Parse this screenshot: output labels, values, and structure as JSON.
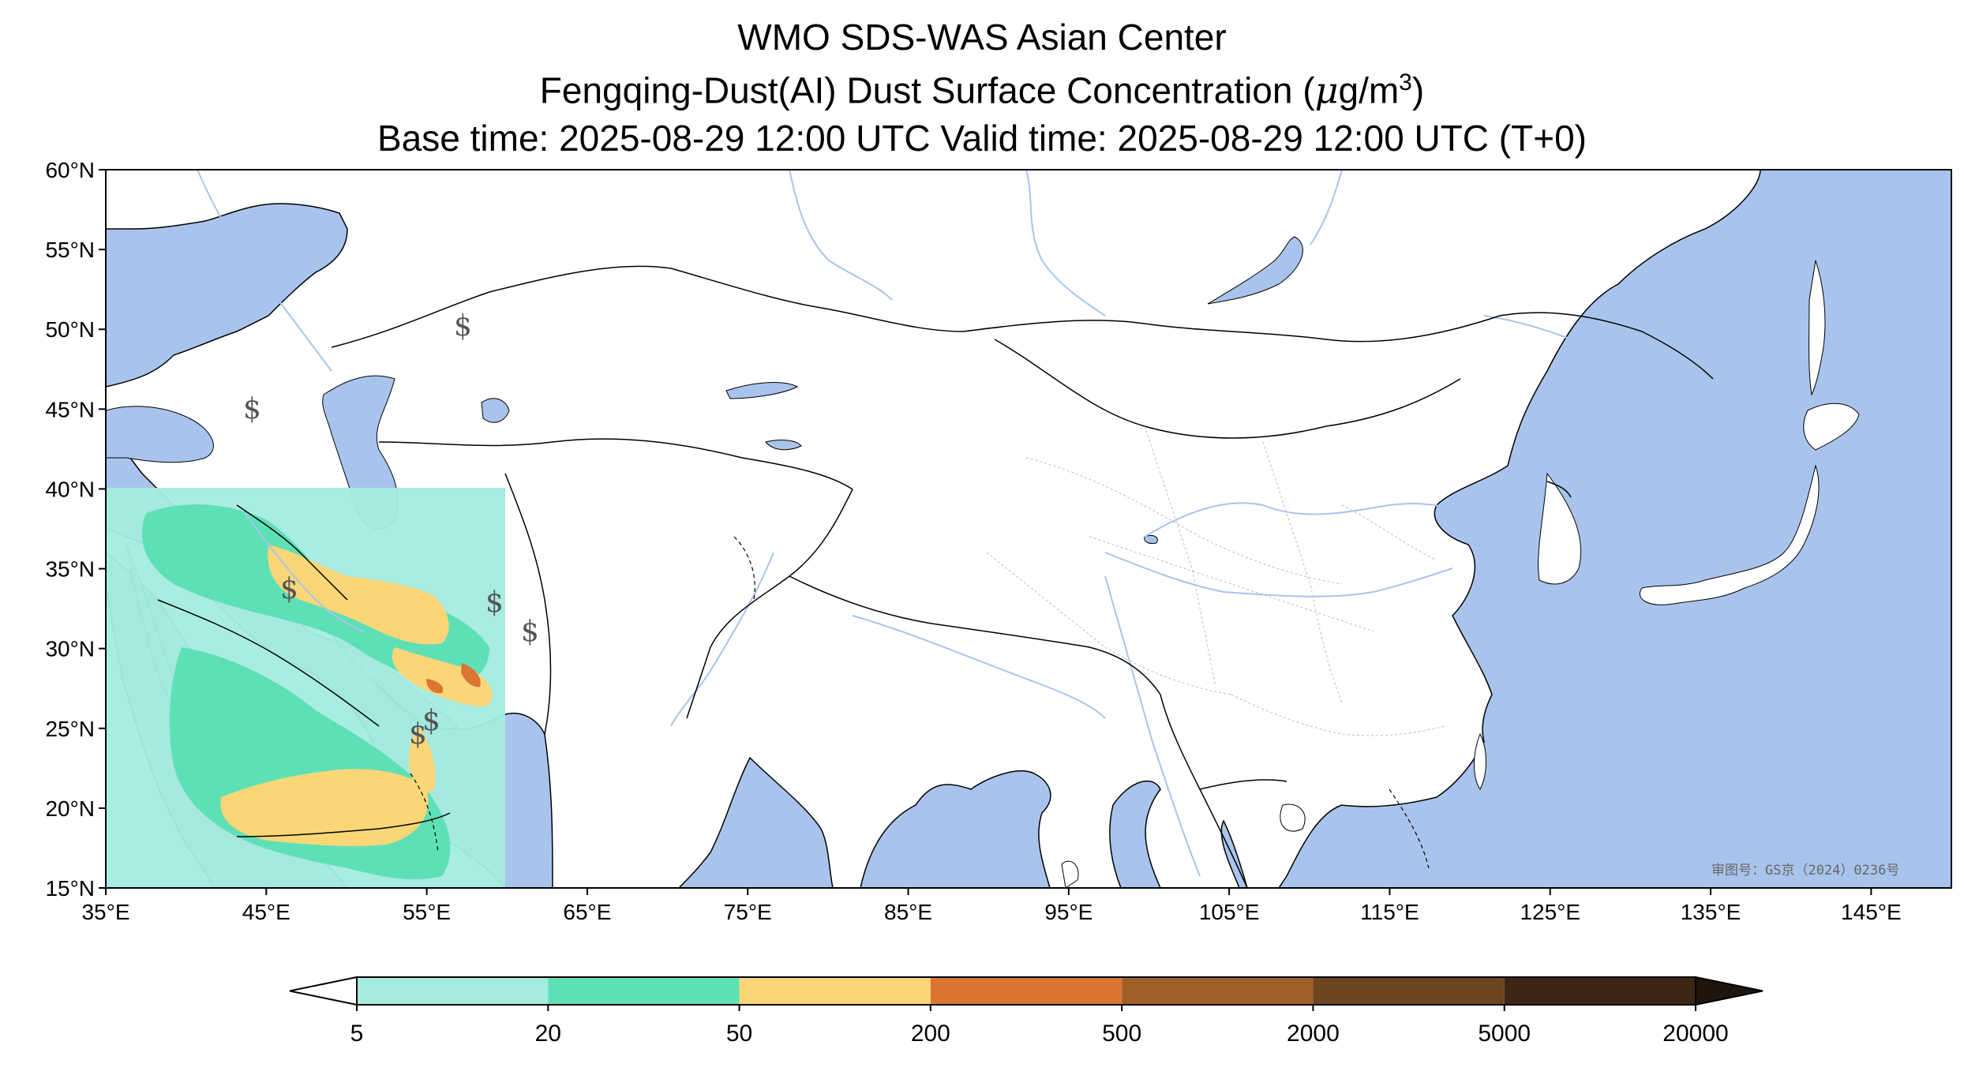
{
  "header": {
    "line1": "WMO SDS-WAS Asian Center",
    "line2_prefix": "Fengqing-Dust(AI) Dust Surface Concentration (",
    "line2_mu": "μ",
    "line2_unit": "g/m",
    "line2_exp": "3",
    "line2_suffix": ")",
    "line3": "Base time: 2025-08-29 12:00 UTC Valid time: 2025-08-29 12:00 UTC (T+0)"
  },
  "map": {
    "extent": {
      "lon_min": 35,
      "lon_max": 150,
      "lat_min": 15,
      "lat_max": 60
    },
    "lat_ticks": [
      "60°N",
      "55°N",
      "50°N",
      "45°N",
      "40°N",
      "35°N",
      "30°N",
      "25°N",
      "20°N",
      "15°N"
    ],
    "lon_ticks": [
      "35°E",
      "45°E",
      "55°E",
      "65°E",
      "75°E",
      "85°E",
      "95°E",
      "105°E",
      "115°E",
      "125°E",
      "135°E",
      "145°E"
    ],
    "approval_number": "审图号：GS京（2024）0236号",
    "ocean_color": "#a9c4ec",
    "land_color": "#ffffff",
    "river_color": "#a9c4ec",
    "border_color": "#000000",
    "province_border_color": "#bbbbbb",
    "dust_domain": {
      "lon_min": 38,
      "lon_max": 60,
      "lat_min": 15,
      "lat_max": 40
    },
    "place_marker_symbol": "$"
  },
  "colorbar": {
    "boundaries": [
      "5",
      "20",
      "50",
      "200",
      "500",
      "2000",
      "5000",
      "20000"
    ],
    "colors": [
      "#a4ebe0",
      "#5ee0b6",
      "#fad677",
      "#dc7432",
      "#a05f26",
      "#6c4520",
      "#3d2615"
    ],
    "extend": "both",
    "under_color": "#ffffff",
    "over_color": "#1f150c"
  }
}
